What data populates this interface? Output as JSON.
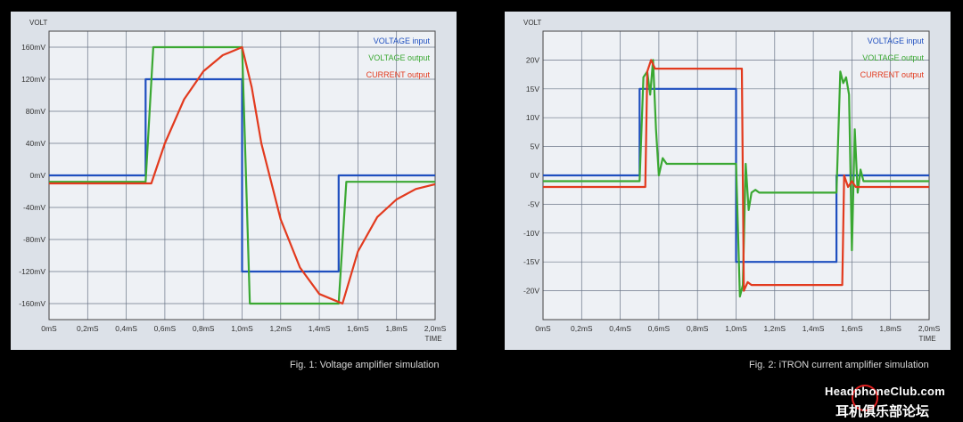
{
  "captions": {
    "left": "Fig. 1: Voltage amplifier simulation",
    "right": "Fig. 2: iTRON current amplifier simulation"
  },
  "watermark": {
    "line1": "HeadphoneClub.com",
    "line2": "耳机俱乐部论坛"
  },
  "chart_data": [
    {
      "type": "line",
      "title": "",
      "ylabel": "VOLT",
      "xlabel": "TIME",
      "xlim": [
        0,
        2.0
      ],
      "ylim": [
        -180,
        180
      ],
      "grid": true,
      "legend_position": "top-right",
      "x_ticks": [
        0,
        0.2,
        0.4,
        0.6,
        0.8,
        1.0,
        1.2,
        1.4,
        1.6,
        1.8,
        2.0
      ],
      "x_tick_labels": [
        "0mS",
        "0,2mS",
        "0,4mS",
        "0,6mS",
        "0,8mS",
        "1,0mS",
        "1,2mS",
        "1,4mS",
        "1,6mS",
        "1,8mS",
        "2,0mS"
      ],
      "y_ticks": [
        160,
        120,
        80,
        40,
        0,
        -40,
        -80,
        -120,
        -160
      ],
      "y_tick_labels": [
        "160mV",
        "120mV",
        "80mV",
        "40mV",
        "0mV",
        "-40mV",
        "-80mV",
        "-120mV",
        "-160mV"
      ],
      "series": [
        {
          "name": "VOLTAGE input",
          "color": "#1f4fbf",
          "x": [
            0,
            0.5,
            0.5,
            1.0,
            1.0,
            1.5,
            1.5,
            2.0
          ],
          "y": [
            0,
            0,
            120,
            120,
            -120,
            -120,
            0,
            0
          ]
        },
        {
          "name": "VOLTAGE output",
          "color": "#3aa832",
          "x": [
            0,
            0.5,
            0.54,
            1.0,
            1.04,
            1.5,
            1.54,
            2.0
          ],
          "y": [
            -8,
            -8,
            160,
            160,
            -160,
            -160,
            -8,
            -8
          ]
        },
        {
          "name": "CURRENT output",
          "color": "#e23a1e",
          "x": [
            0,
            0.53,
            0.6,
            0.7,
            0.8,
            0.9,
            1.0,
            1.05,
            1.1,
            1.2,
            1.3,
            1.4,
            1.52,
            1.6,
            1.7,
            1.8,
            1.9,
            2.0
          ],
          "y": [
            -10,
            -10,
            40,
            95,
            130,
            150,
            160,
            110,
            40,
            -55,
            -115,
            -148,
            -160,
            -95,
            -52,
            -30,
            -17,
            -11
          ]
        }
      ]
    },
    {
      "type": "line",
      "title": "",
      "ylabel": "VOLT",
      "xlabel": "TIME",
      "xlim": [
        0,
        2.0
      ],
      "ylim": [
        -25,
        25
      ],
      "grid": true,
      "legend_position": "top-right",
      "x_ticks": [
        0,
        0.2,
        0.4,
        0.6,
        0.8,
        1.0,
        1.2,
        1.4,
        1.6,
        1.8,
        2.0
      ],
      "x_tick_labels": [
        "0mS",
        "0,2mS",
        "0,4mS",
        "0,6mS",
        "0,8mS",
        "1,0mS",
        "1,2mS",
        "1,4mS",
        "1,6mS",
        "1,8mS",
        "2,0mS"
      ],
      "y_ticks": [
        20,
        15,
        10,
        5,
        0,
        -5,
        -10,
        -15,
        -20
      ],
      "y_tick_labels": [
        "20V",
        "15V",
        "10V",
        "5V",
        "0V",
        "-5V",
        "-10V",
        "-15V",
        "-20V"
      ],
      "series": [
        {
          "name": "VOLTAGE input",
          "color": "#1f4fbf",
          "x": [
            0,
            0.5,
            0.5,
            1.0,
            1.0,
            1.52,
            1.52,
            2.0
          ],
          "y": [
            0,
            0,
            15,
            15,
            -15,
            -15,
            0,
            0
          ]
        },
        {
          "name": "VOLTAGE output",
          "color": "#3aa832",
          "x": [
            0,
            0.5,
            0.52,
            0.54,
            0.555,
            0.57,
            0.585,
            0.6,
            0.62,
            0.64,
            0.66,
            1.0,
            1.02,
            1.035,
            1.05,
            1.065,
            1.08,
            1.1,
            1.12,
            1.15,
            1.52,
            1.54,
            1.555,
            1.57,
            1.585,
            1.6,
            1.615,
            1.63,
            1.645,
            1.66,
            1.7,
            2.0
          ],
          "y": [
            -1,
            -1,
            17,
            18,
            14,
            20,
            8,
            0,
            3,
            2,
            2,
            2,
            -21,
            -19,
            2,
            -6,
            -3,
            -2.5,
            -3,
            -3,
            -3,
            18,
            16,
            17,
            14,
            -13,
            8,
            -3,
            1,
            -1,
            -1,
            -1
          ],
          "legend_spike_x": 1.575,
          "legend_spike_y": 18
        },
        {
          "name": "CURRENT output",
          "color": "#e23a1e",
          "x": [
            0,
            0.53,
            0.54,
            0.56,
            0.58,
            0.6,
            1.03,
            1.04,
            1.06,
            1.08,
            1.1,
            1.55,
            1.56,
            1.58,
            1.6,
            1.62,
            2.0
          ],
          "y": [
            -2,
            -2,
            18,
            20,
            18.5,
            18.5,
            18.5,
            -20,
            -18.5,
            -19,
            -19,
            -19,
            0,
            -2,
            -1,
            -2,
            -2
          ]
        }
      ]
    }
  ]
}
